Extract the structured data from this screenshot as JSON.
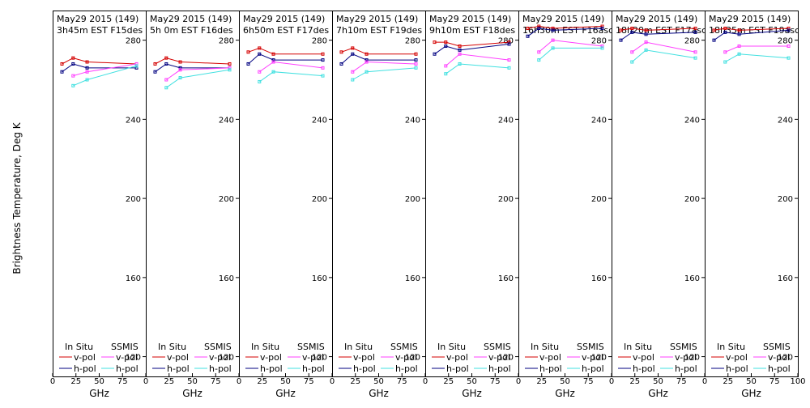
{
  "y_axis_label": "Brightness Temperature, Deg K",
  "x_axis_label": "GHz",
  "legend": {
    "insitu_title": "In Situ",
    "ssmis_title": "SSMIS",
    "vpol_label": "v-pol",
    "hpol_label": "h-pol"
  },
  "colors": {
    "insitu_v": "#d40000",
    "insitu_h": "#000080",
    "ssmis_v": "#ff40ff",
    "ssmis_h": "#40e0e0"
  },
  "chart_data": [
    {
      "type": "line",
      "title_line1": "May29 2015 (149)",
      "title_line2": "3h45m  EST F15des",
      "x_ticks": [
        "0",
        "25",
        "50",
        "75",
        "100"
      ],
      "y_ticks": [
        "120",
        "160",
        "200",
        "240",
        "280"
      ],
      "xlim": [
        0,
        100
      ],
      "ylim": [
        110,
        295
      ],
      "series": [
        {
          "name": "In Situ v-pol",
          "x": [
            10,
            22,
            37,
            90
          ],
          "y": [
            268,
            271,
            269,
            268
          ]
        },
        {
          "name": "In Situ h-pol",
          "x": [
            10,
            22,
            37,
            90
          ],
          "y": [
            264,
            268,
            266,
            266
          ]
        },
        {
          "name": "SSMIS v-pol",
          "x": [
            22,
            37,
            90
          ],
          "y": [
            262,
            264,
            268
          ]
        },
        {
          "name": "SSMIS h-pol",
          "x": [
            22,
            37,
            90
          ],
          "y": [
            257,
            260,
            267
          ]
        }
      ]
    },
    {
      "type": "line",
      "title_line1": "May29 2015 (149)",
      "title_line2": "5h 0m  EST F16des",
      "x_ticks": [
        "0",
        "25",
        "50",
        "75",
        "100"
      ],
      "y_ticks": [
        "120",
        "160",
        "200",
        "240",
        "280"
      ],
      "xlim": [
        0,
        100
      ],
      "ylim": [
        110,
        295
      ],
      "series": [
        {
          "name": "In Situ v-pol",
          "x": [
            10,
            22,
            37,
            90
          ],
          "y": [
            268,
            271,
            269,
            268
          ]
        },
        {
          "name": "In Situ h-pol",
          "x": [
            10,
            22,
            37,
            90
          ],
          "y": [
            264,
            268,
            266,
            266
          ]
        },
        {
          "name": "SSMIS v-pol",
          "x": [
            22,
            37,
            90
          ],
          "y": [
            260,
            265,
            266
          ]
        },
        {
          "name": "SSMIS h-pol",
          "x": [
            22,
            37,
            90
          ],
          "y": [
            256,
            261,
            265
          ]
        }
      ]
    },
    {
      "type": "line",
      "title_line1": "May29 2015 (149)",
      "title_line2": "6h50m  EST F17des",
      "x_ticks": [
        "0",
        "25",
        "50",
        "75",
        "100"
      ],
      "y_ticks": [
        "120",
        "160",
        "200",
        "240",
        "280"
      ],
      "xlim": [
        0,
        100
      ],
      "ylim": [
        110,
        295
      ],
      "series": [
        {
          "name": "In Situ v-pol",
          "x": [
            10,
            22,
            37,
            90
          ],
          "y": [
            274,
            276,
            273,
            273
          ]
        },
        {
          "name": "In Situ h-pol",
          "x": [
            10,
            22,
            37,
            90
          ],
          "y": [
            268,
            273,
            270,
            270
          ]
        },
        {
          "name": "SSMIS v-pol",
          "x": [
            22,
            37,
            90
          ],
          "y": [
            264,
            269,
            266
          ]
        },
        {
          "name": "SSMIS h-pol",
          "x": [
            22,
            37,
            90
          ],
          "y": [
            259,
            264,
            262
          ]
        }
      ]
    },
    {
      "type": "line",
      "title_line1": "May29 2015 (149)",
      "title_line2": "7h10m  EST F19des",
      "x_ticks": [
        "0",
        "25",
        "50",
        "75",
        "100"
      ],
      "y_ticks": [
        "120",
        "160",
        "200",
        "240",
        "280"
      ],
      "xlim": [
        0,
        100
      ],
      "ylim": [
        110,
        295
      ],
      "series": [
        {
          "name": "In Situ v-pol",
          "x": [
            10,
            22,
            37,
            90
          ],
          "y": [
            274,
            276,
            273,
            273
          ]
        },
        {
          "name": "In Situ h-pol",
          "x": [
            10,
            22,
            37,
            90
          ],
          "y": [
            268,
            273,
            270,
            270
          ]
        },
        {
          "name": "SSMIS v-pol",
          "x": [
            22,
            37,
            90
          ],
          "y": [
            264,
            269,
            268
          ]
        },
        {
          "name": "SSMIS h-pol",
          "x": [
            22,
            37,
            90
          ],
          "y": [
            260,
            264,
            266
          ]
        }
      ]
    },
    {
      "type": "line",
      "title_line1": "May29 2015 (149)",
      "title_line2": "9h10m  EST F18des",
      "x_ticks": [
        "0",
        "25",
        "50",
        "75",
        "100"
      ],
      "y_ticks": [
        "120",
        "160",
        "200",
        "240",
        "280"
      ],
      "xlim": [
        0,
        100
      ],
      "ylim": [
        110,
        295
      ],
      "series": [
        {
          "name": "In Situ v-pol",
          "x": [
            10,
            22,
            37,
            90
          ],
          "y": [
            279,
            279,
            277,
            279
          ]
        },
        {
          "name": "In Situ h-pol",
          "x": [
            10,
            22,
            37,
            90
          ],
          "y": [
            273,
            277,
            275,
            278
          ]
        },
        {
          "name": "SSMIS v-pol",
          "x": [
            22,
            37,
            90
          ],
          "y": [
            267,
            273,
            270
          ]
        },
        {
          "name": "SSMIS h-pol",
          "x": [
            22,
            37,
            90
          ],
          "y": [
            263,
            268,
            266
          ]
        }
      ]
    },
    {
      "type": "line",
      "title_line1": "May29 2015 (149)",
      "title_line2": "16h30m  EST F16asc",
      "x_ticks": [
        "0",
        "25",
        "50",
        "75",
        "100"
      ],
      "y_ticks": [
        "120",
        "160",
        "200",
        "240",
        "280"
      ],
      "xlim": [
        0,
        100
      ],
      "ylim": [
        110,
        295
      ],
      "series": [
        {
          "name": "In Situ v-pol",
          "x": [
            10,
            22,
            37,
            90
          ],
          "y": [
            286,
            287,
            286,
            287
          ]
        },
        {
          "name": "In Situ h-pol",
          "x": [
            10,
            22,
            37,
            90
          ],
          "y": [
            282,
            286,
            285,
            286
          ]
        },
        {
          "name": "SSMIS v-pol",
          "x": [
            22,
            37,
            90
          ],
          "y": [
            274,
            280,
            277
          ]
        },
        {
          "name": "SSMIS h-pol",
          "x": [
            22,
            37,
            90
          ],
          "y": [
            270,
            276,
            276
          ]
        }
      ]
    },
    {
      "type": "line",
      "title_line1": "May29 2015 (149)",
      "title_line2": "18h20m  EST F17asc",
      "x_ticks": [
        "0",
        "25",
        "50",
        "75",
        "100"
      ],
      "y_ticks": [
        "120",
        "160",
        "200",
        "240",
        "280"
      ],
      "xlim": [
        0,
        100
      ],
      "ylim": [
        110,
        295
      ],
      "series": [
        {
          "name": "In Situ v-pol",
          "x": [
            10,
            22,
            37,
            90
          ],
          "y": [
            285,
            286,
            285,
            286
          ]
        },
        {
          "name": "In Situ h-pol",
          "x": [
            10,
            22,
            37,
            90
          ],
          "y": [
            280,
            284,
            283,
            284
          ]
        },
        {
          "name": "SSMIS v-pol",
          "x": [
            22,
            37,
            90
          ],
          "y": [
            274,
            279,
            274
          ]
        },
        {
          "name": "SSMIS h-pol",
          "x": [
            22,
            37,
            90
          ],
          "y": [
            269,
            275,
            271
          ]
        }
      ]
    },
    {
      "type": "line",
      "title_line1": "May29 2015 (149)",
      "title_line2": "18h35m  EST F19asc",
      "x_ticks": [
        "0",
        "25",
        "50",
        "75",
        "100"
      ],
      "y_ticks": [
        "120",
        "160",
        "200",
        "240",
        "280"
      ],
      "xlim": [
        0,
        100
      ],
      "ylim": [
        110,
        295
      ],
      "series": [
        {
          "name": "In Situ v-pol",
          "x": [
            10,
            22,
            37,
            90
          ],
          "y": [
            285,
            286,
            285,
            286
          ]
        },
        {
          "name": "In Situ h-pol",
          "x": [
            10,
            22,
            37,
            90
          ],
          "y": [
            280,
            284,
            283,
            285
          ]
        },
        {
          "name": "SSMIS v-pol",
          "x": [
            22,
            37,
            90
          ],
          "y": [
            274,
            277,
            277
          ]
        },
        {
          "name": "SSMIS h-pol",
          "x": [
            22,
            37,
            90
          ],
          "y": [
            269,
            273,
            271
          ]
        }
      ]
    }
  ]
}
